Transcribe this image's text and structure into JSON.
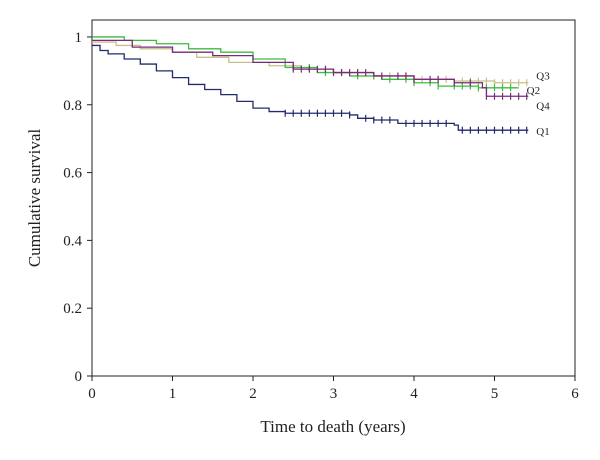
{
  "chart_data": {
    "type": "line",
    "title": "",
    "xlabel": "Time to death (years)",
    "ylabel": "Cumulative survival",
    "xlim": [
      0,
      6
    ],
    "ylim": [
      0,
      1.05
    ],
    "xticks": [
      0,
      1,
      2,
      3,
      4,
      5,
      6
    ],
    "yticks": [
      0,
      0.2,
      0.4,
      0.6,
      0.8,
      1
    ],
    "grid": false,
    "legend": "none",
    "series": [
      {
        "name": "Q3",
        "color": "#c8c089",
        "points": [
          [
            0,
            0.985
          ],
          [
            0.3,
            0.975
          ],
          [
            0.6,
            0.965
          ],
          [
            1.0,
            0.955
          ],
          [
            1.3,
            0.94
          ],
          [
            1.7,
            0.925
          ],
          [
            2.2,
            0.915
          ],
          [
            2.6,
            0.905
          ],
          [
            3.0,
            0.895
          ],
          [
            3.5,
            0.885
          ],
          [
            4.0,
            0.875
          ],
          [
            4.5,
            0.87
          ],
          [
            5.0,
            0.865
          ],
          [
            5.42,
            0.865
          ]
        ],
        "censored": [
          2.5,
          2.7,
          2.9,
          3.1,
          3.3,
          3.5,
          3.7,
          3.9,
          4.1,
          4.3,
          4.4,
          4.6,
          4.7,
          4.8,
          4.9,
          5.0,
          5.1,
          5.2,
          5.3,
          5.4
        ]
      },
      {
        "name": "Q2",
        "color": "#3cbc3c",
        "points": [
          [
            0,
            1.0
          ],
          [
            0.4,
            0.99
          ],
          [
            0.8,
            0.98
          ],
          [
            1.2,
            0.965
          ],
          [
            1.6,
            0.955
          ],
          [
            2.0,
            0.935
          ],
          [
            2.4,
            0.91
          ],
          [
            2.8,
            0.895
          ],
          [
            3.2,
            0.885
          ],
          [
            3.6,
            0.875
          ],
          [
            4.0,
            0.865
          ],
          [
            4.3,
            0.855
          ],
          [
            4.8,
            0.85
          ],
          [
            5.3,
            0.85
          ]
        ],
        "censored": [
          2.5,
          2.7,
          2.9,
          3.1,
          3.3,
          3.5,
          3.7,
          3.9,
          4.0,
          4.2,
          4.3,
          4.5,
          4.6,
          4.7,
          4.8,
          4.9,
          5.0,
          5.1,
          5.2
        ]
      },
      {
        "name": "Q4",
        "color": "#7a2a7a",
        "points": [
          [
            0,
            0.99
          ],
          [
            0.5,
            0.97
          ],
          [
            1.0,
            0.955
          ],
          [
            1.5,
            0.945
          ],
          [
            2.0,
            0.925
          ],
          [
            2.5,
            0.905
          ],
          [
            3.0,
            0.895
          ],
          [
            3.5,
            0.885
          ],
          [
            4.0,
            0.875
          ],
          [
            4.5,
            0.865
          ],
          [
            4.85,
            0.85
          ],
          [
            4.9,
            0.825
          ],
          [
            5.42,
            0.825
          ]
        ],
        "censored": [
          2.5,
          2.6,
          2.7,
          2.8,
          2.9,
          3.0,
          3.1,
          3.2,
          3.3,
          3.4,
          3.6,
          3.8,
          3.9,
          4.0,
          4.2,
          4.3,
          4.5,
          4.7,
          4.9,
          5.0,
          5.1,
          5.2,
          5.3,
          5.4
        ]
      },
      {
        "name": "Q1",
        "color": "#232a6e",
        "points": [
          [
            0,
            0.975
          ],
          [
            0.1,
            0.96
          ],
          [
            0.2,
            0.95
          ],
          [
            0.4,
            0.935
          ],
          [
            0.6,
            0.92
          ],
          [
            0.8,
            0.9
          ],
          [
            1.0,
            0.88
          ],
          [
            1.2,
            0.86
          ],
          [
            1.4,
            0.845
          ],
          [
            1.6,
            0.83
          ],
          [
            1.8,
            0.81
          ],
          [
            2.0,
            0.79
          ],
          [
            2.2,
            0.78
          ],
          [
            2.4,
            0.775
          ],
          [
            2.6,
            0.775
          ],
          [
            3.2,
            0.77
          ],
          [
            3.3,
            0.76
          ],
          [
            3.5,
            0.755
          ],
          [
            3.8,
            0.745
          ],
          [
            4.5,
            0.74
          ],
          [
            4.55,
            0.725
          ],
          [
            5.42,
            0.725
          ]
        ],
        "censored": [
          2.4,
          2.5,
          2.6,
          2.7,
          2.8,
          2.9,
          3.0,
          3.1,
          3.2,
          3.4,
          3.5,
          3.6,
          3.7,
          3.9,
          4.0,
          4.1,
          4.2,
          4.3,
          4.4,
          4.6,
          4.7,
          4.8,
          4.9,
          5.0,
          5.1,
          5.2,
          5.3,
          5.4
        ]
      }
    ]
  }
}
